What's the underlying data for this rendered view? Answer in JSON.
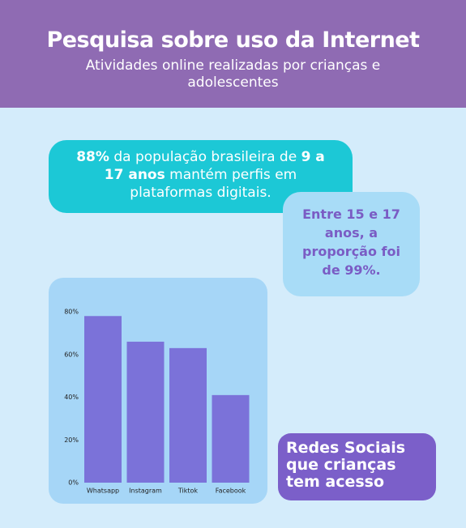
{
  "header": {
    "title": "Pesquisa sobre uso da Internet",
    "subtitle": "Atividades online realizadas por crianças e adolescentes"
  },
  "callout_main": {
    "segments": [
      "88%",
      "da população brasileira de",
      "9 a 17 anos",
      "mantém perfis em plataformas digitais."
    ]
  },
  "callout_age": {
    "text": "Entre 15 e 17 anos, a proporção foi de 99%."
  },
  "chart_label": {
    "text": "Redes Sociais que crianças tem acesso"
  },
  "chart_data": {
    "type": "bar",
    "categories": [
      "Whatsapp",
      "Instagram",
      "Tiktok",
      "Facebook"
    ],
    "values": [
      78,
      66,
      63,
      41
    ],
    "color": "#7b72d9",
    "ylim": [
      0,
      80
    ],
    "yticks": [
      {
        "value": 0,
        "label": "0%"
      },
      {
        "value": 20,
        "label": "20%"
      },
      {
        "value": 40,
        "label": "40%"
      },
      {
        "value": 60,
        "label": "60%"
      },
      {
        "value": 80,
        "label": "80%"
      }
    ]
  }
}
